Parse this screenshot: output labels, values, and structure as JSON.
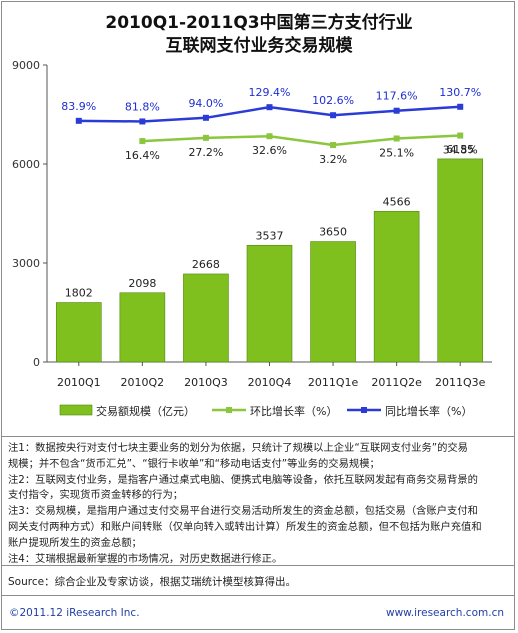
{
  "title_line1": "2010Q1-2011Q3中国第三方支付行业",
  "title_line2": "互联网支付业务交易规模",
  "colors": {
    "bar": "#7fbf1e",
    "bar_edge": "#4e8a10",
    "qoq_line": "#8cc63f",
    "yoy_line": "#2b3bd6",
    "yoy_label": "#1e2fd0",
    "axis": "#555555"
  },
  "chart_data": {
    "type": "bar",
    "categories": [
      "2010Q1",
      "2010Q2",
      "2010Q3",
      "2010Q4",
      "2011Q1e",
      "2011Q2e",
      "2011Q3e"
    ],
    "ylim": [
      0,
      9000
    ],
    "yticks": [
      "0",
      "3000",
      "6000",
      "9000"
    ],
    "grid": false,
    "legend_position": "bottom",
    "series": [
      {
        "name": "交易额规模（亿元）",
        "type": "bar",
        "values": [
          1802,
          2098,
          2668,
          3537,
          3650,
          4566,
          6155
        ],
        "labels": [
          "1802",
          "2098",
          "2668",
          "3537",
          "3650",
          "4566",
          "6155"
        ]
      },
      {
        "name": "环比增长率（%）",
        "type": "line",
        "values": [
          null,
          16.4,
          27.2,
          32.6,
          3.2,
          25.1,
          34.8
        ],
        "labels": [
          "",
          "16.4%",
          "27.2%",
          "32.6%",
          "3.2%",
          "25.1%",
          "34.8%"
        ]
      },
      {
        "name": "同比增长率（%）",
        "type": "line",
        "values": [
          83.9,
          81.8,
          94.0,
          129.4,
          102.6,
          117.6,
          130.7
        ],
        "labels": [
          "83.9%",
          "81.8%",
          "94.0%",
          "129.4%",
          "102.6%",
          "117.6%",
          "130.7%"
        ]
      }
    ]
  },
  "notes": [
    "注1：数据按央行对支付七块主要业务的划分为依据，只统计了规模以上企业“互联网支付业务”的交易",
    "规模；并不包含“货币汇兑”、“银行卡收单”和“移动电话支付”等业务的交易规模；",
    "注2：互联网支付业务，是指客户通过桌式电脑、便携式电脑等设备，依托互联网发起有商务交易背景的",
    "支付指令，实现货币资金转移的行为；",
    "注3：交易规模，是指用户通过支付交易平台进行交易活动所发生的资金总额，包括交易（含账户支付和",
    "网关支付两种方式）和账户间转账（仅单向转入或转出计算）所发生的资金总额，但不包括为账户充值和",
    "账户提现所发生的资金总额；",
    "注4：艾瑞根据最新掌握的市场情况，对历史数据进行修正。"
  ],
  "source": "Source：综合企业及专家访谈，根据艾瑞统计模型核算得出。",
  "footer": {
    "copyright": "©2011.12 iResearch Inc.",
    "website": "www.iresearch.com.cn"
  }
}
